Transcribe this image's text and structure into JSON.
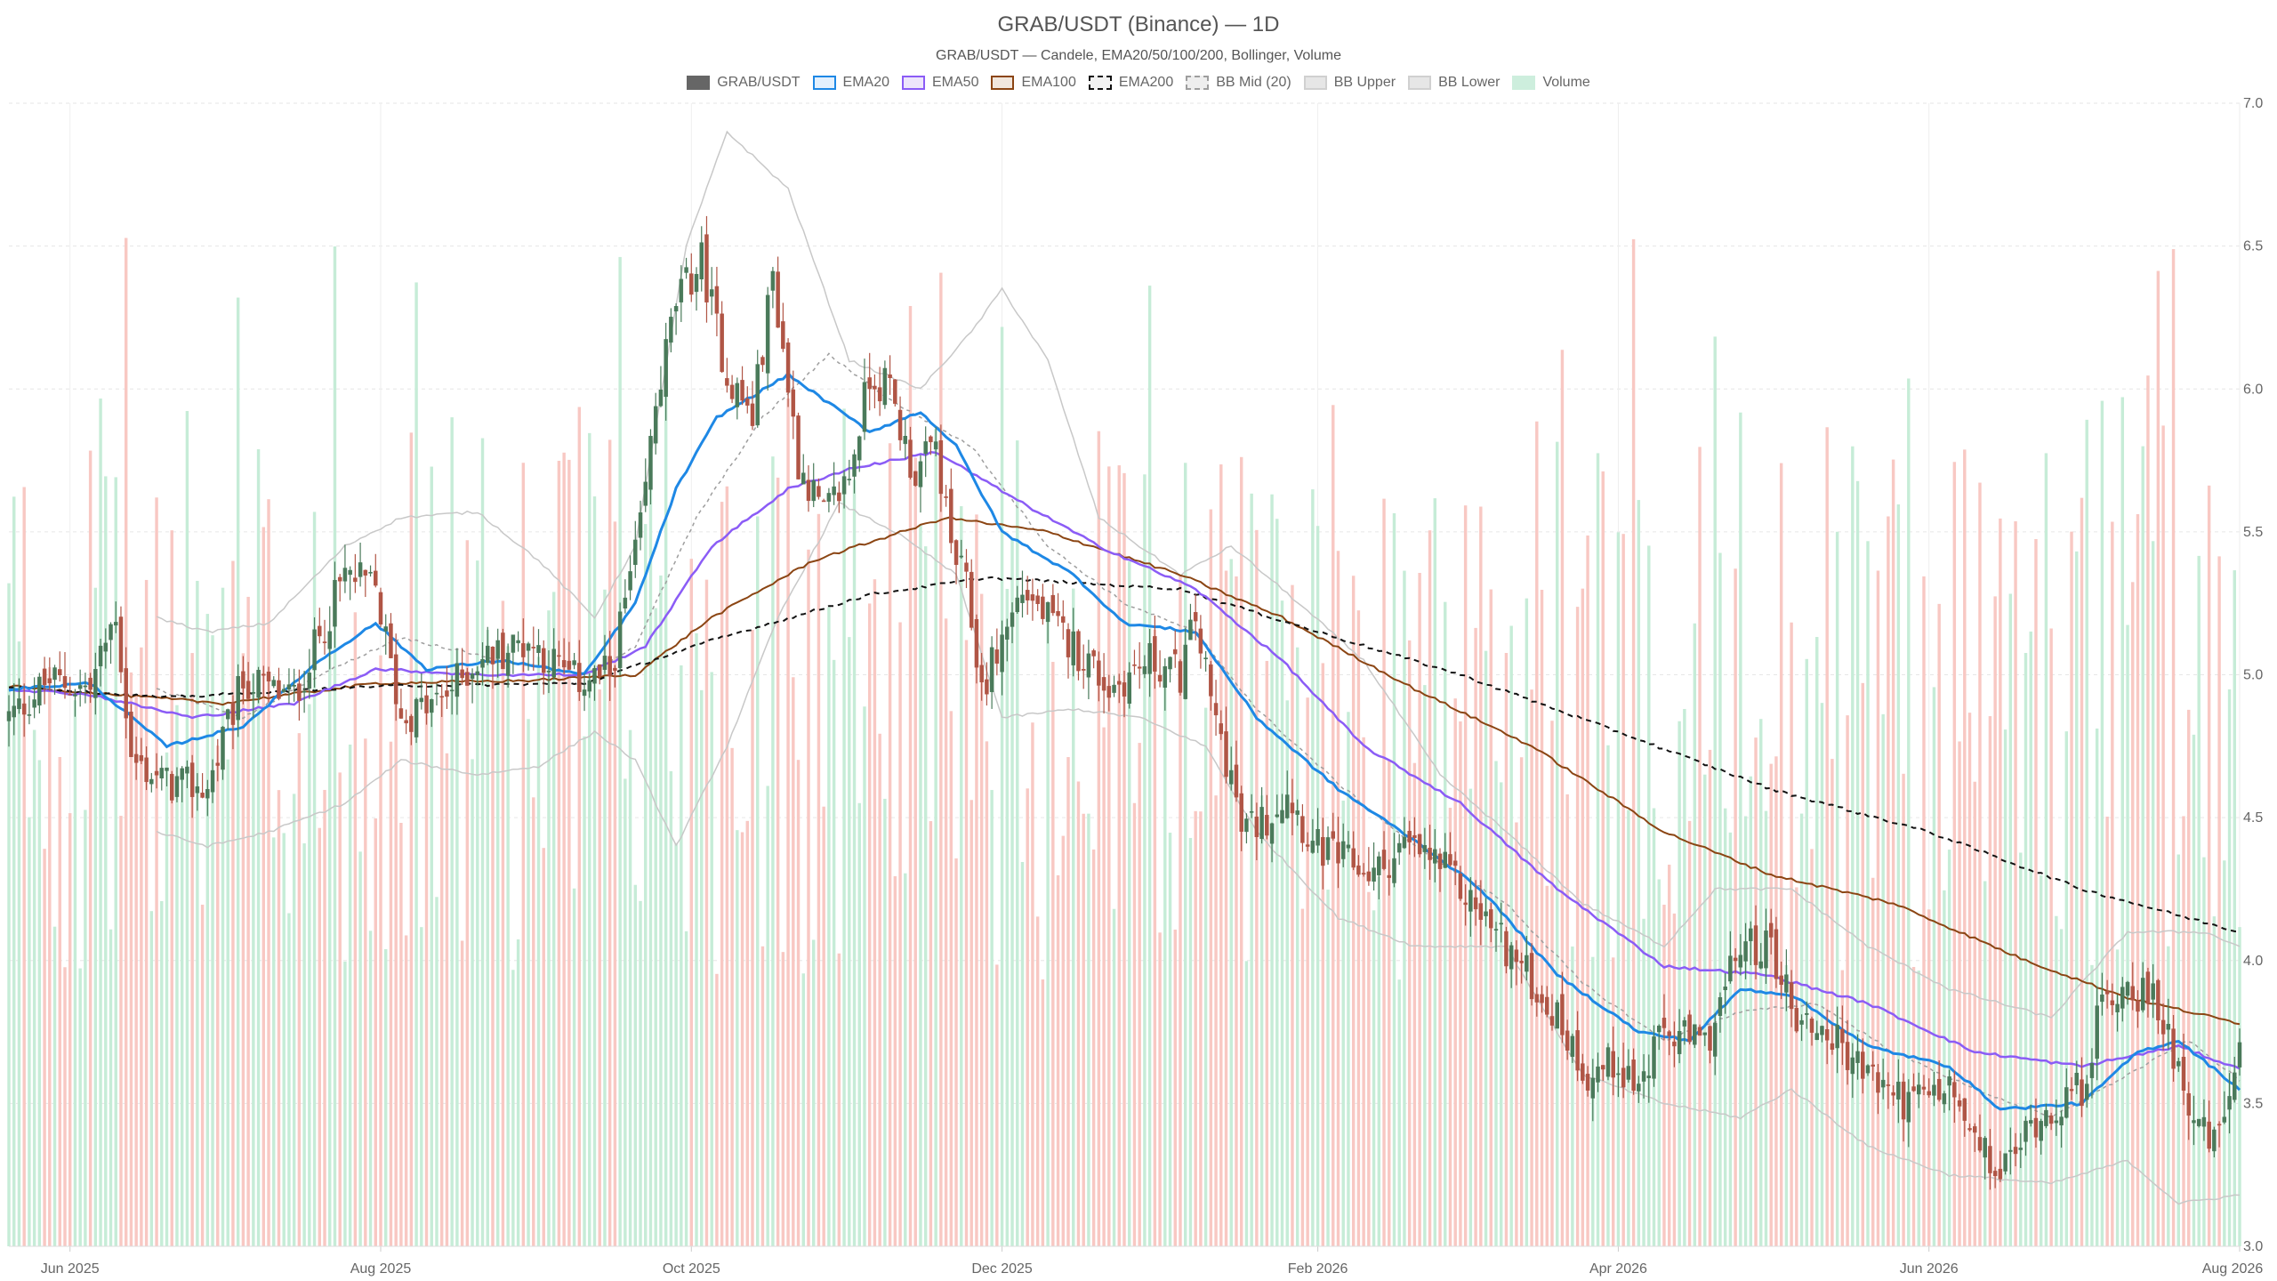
{
  "chart_data": {
    "type": "candlestick",
    "title": "GRAB/USDT (Binance) — 1D",
    "subtitle": "GRAB/USDT — Candele, EMA20/50/100/200, Bollinger, Volume",
    "legend_position": "top-center",
    "grid": true,
    "ylim": [
      3.0,
      7.0
    ],
    "xlim": [
      "2025-05-20",
      "2026-08-01"
    ],
    "y_ticks": [
      "3.0",
      "3.5",
      "4.0",
      "4.5",
      "5.0",
      "5.5",
      "6.0",
      "6.5",
      "7.0"
    ],
    "x_ticks": [
      {
        "label": "Jun 2025",
        "date": "2025-06-01"
      },
      {
        "label": "Aug 2025",
        "date": "2025-08-01"
      },
      {
        "label": "Oct 2025",
        "date": "2025-10-01"
      },
      {
        "label": "Dec 2025",
        "date": "2025-12-01"
      },
      {
        "label": "Feb 2026",
        "date": "2026-02-01"
      },
      {
        "label": "Apr 2026",
        "date": "2026-04-01"
      },
      {
        "label": "Jun 2026",
        "date": "2026-06-01"
      },
      {
        "label": "Aug 2026",
        "date": "2026-08-01"
      }
    ],
    "legend": [
      {
        "key": "price",
        "label": "GRAB/USDT",
        "fill": "#666666",
        "stroke": "#666666",
        "dash": false
      },
      {
        "key": "ema20",
        "label": "EMA20",
        "fill": "#e3f0fd",
        "stroke": "#1e88e5",
        "dash": false
      },
      {
        "key": "ema50",
        "label": "EMA50",
        "fill": "#ede5fb",
        "stroke": "#8b5cf6",
        "dash": false
      },
      {
        "key": "ema100",
        "label": "EMA100",
        "fill": "#f1e6dc",
        "stroke": "#8b4513",
        "dash": false
      },
      {
        "key": "ema200",
        "label": "EMA200",
        "fill": "#f2f2f2",
        "stroke": "#111111",
        "dash": true
      },
      {
        "key": "bbmid",
        "label": "BB Mid (20)",
        "fill": "#eeeeee",
        "stroke": "#9e9e9e",
        "dash": true
      },
      {
        "key": "bbup",
        "label": "BB Upper",
        "fill": "#e6e6e6",
        "stroke": "#d0d0d0",
        "dash": false
      },
      {
        "key": "bblow",
        "label": "BB Lower",
        "fill": "#e6e6e6",
        "stroke": "#d0d0d0",
        "dash": false
      },
      {
        "key": "volume",
        "label": "Volume",
        "fill": "#cdeedd",
        "stroke": "#cdeedd",
        "dash": false
      }
    ],
    "colors": {
      "up": "#4a7a5a",
      "down": "#b05545",
      "volume_up": "#c6ecd7",
      "volume_down": "#f8c8c3",
      "grid": "#e6e6e6"
    },
    "price_anchors": [
      [
        "2025-05-20",
        4.85
      ],
      [
        "2025-05-28",
        4.98
      ],
      [
        "2025-06-05",
        4.95
      ],
      [
        "2025-06-10",
        5.22
      ],
      [
        "2025-06-13",
        4.7
      ],
      [
        "2025-06-20",
        4.62
      ],
      [
        "2025-06-28",
        4.6
      ],
      [
        "2025-07-05",
        4.98
      ],
      [
        "2025-07-15",
        4.92
      ],
      [
        "2025-07-25",
        5.35
      ],
      [
        "2025-07-31",
        5.3
      ],
      [
        "2025-08-05",
        4.85
      ],
      [
        "2025-08-12",
        4.9
      ],
      [
        "2025-08-20",
        5.05
      ],
      [
        "2025-08-30",
        5.12
      ],
      [
        "2025-09-08",
        4.98
      ],
      [
        "2025-09-15",
        5.0
      ],
      [
        "2025-09-18",
        5.25
      ],
      [
        "2025-09-21",
        5.5
      ],
      [
        "2025-09-24",
        5.95
      ],
      [
        "2025-09-28",
        6.3
      ],
      [
        "2025-10-03",
        6.45
      ],
      [
        "2025-10-08",
        6.05
      ],
      [
        "2025-10-13",
        5.9
      ],
      [
        "2025-10-17",
        6.4
      ],
      [
        "2025-10-22",
        5.75
      ],
      [
        "2025-10-27",
        5.55
      ],
      [
        "2025-11-01",
        5.7
      ],
      [
        "2025-11-05",
        6.05
      ],
      [
        "2025-11-09",
        6.0
      ],
      [
        "2025-11-12",
        5.8
      ],
      [
        "2025-11-14",
        5.7
      ],
      [
        "2025-11-18",
        5.8
      ],
      [
        "2025-11-21",
        5.45
      ],
      [
        "2025-11-24",
        5.3
      ],
      [
        "2025-11-27",
        4.95
      ],
      [
        "2025-12-05",
        5.3
      ],
      [
        "2025-12-12",
        5.15
      ],
      [
        "2025-12-18",
        5.05
      ],
      [
        "2025-12-22",
        4.95
      ],
      [
        "2025-12-30",
        5.05
      ],
      [
        "2026-01-05",
        5.0
      ],
      [
        "2026-01-08",
        5.2
      ],
      [
        "2026-01-11",
        4.9
      ],
      [
        "2026-01-15",
        4.65
      ],
      [
        "2026-01-17",
        4.45
      ],
      [
        "2026-01-22",
        4.5
      ],
      [
        "2026-01-26",
        4.6
      ],
      [
        "2026-01-31",
        4.4
      ],
      [
        "2026-02-06",
        4.35
      ],
      [
        "2026-02-12",
        4.3
      ],
      [
        "2026-02-18",
        4.4
      ],
      [
        "2026-02-24",
        4.35
      ],
      [
        "2026-03-01",
        4.25
      ],
      [
        "2026-03-08",
        4.1
      ],
      [
        "2026-03-14",
        3.95
      ],
      [
        "2026-03-20",
        3.8
      ],
      [
        "2026-03-26",
        3.6
      ],
      [
        "2026-04-01",
        3.65
      ],
      [
        "2026-04-05",
        3.55
      ],
      [
        "2026-04-10",
        3.75
      ],
      [
        "2026-04-18",
        3.7
      ],
      [
        "2026-04-25",
        4.05
      ],
      [
        "2026-05-01",
        4.05
      ],
      [
        "2026-05-06",
        3.8
      ],
      [
        "2026-05-12",
        3.75
      ],
      [
        "2026-05-20",
        3.6
      ],
      [
        "2026-05-28",
        3.5
      ],
      [
        "2026-06-05",
        3.55
      ],
      [
        "2026-06-10",
        3.35
      ],
      [
        "2026-06-15",
        3.25
      ],
      [
        "2026-06-22",
        3.45
      ],
      [
        "2026-07-01",
        3.55
      ],
      [
        "2026-07-05",
        3.85
      ],
      [
        "2026-07-10",
        3.92
      ],
      [
        "2026-07-15",
        3.85
      ],
      [
        "2026-07-18",
        3.75
      ],
      [
        "2026-07-24",
        3.4
      ],
      [
        "2026-07-27",
        3.35
      ],
      [
        "2026-08-01",
        3.65
      ]
    ],
    "ema20_anchors": [
      [
        "2025-05-20",
        4.95
      ],
      [
        "2025-06-05",
        4.97
      ],
      [
        "2025-06-20",
        4.75
      ],
      [
        "2025-07-05",
        4.82
      ],
      [
        "2025-07-20",
        5.05
      ],
      [
        "2025-07-31",
        5.18
      ],
      [
        "2025-08-10",
        5.02
      ],
      [
        "2025-08-25",
        5.05
      ],
      [
        "2025-09-10",
        5.0
      ],
      [
        "2025-09-20",
        5.25
      ],
      [
        "2025-09-28",
        5.65
      ],
      [
        "2025-10-06",
        5.9
      ],
      [
        "2025-10-20",
        6.05
      ],
      [
        "2025-10-28",
        5.95
      ],
      [
        "2025-11-05",
        5.85
      ],
      [
        "2025-11-15",
        5.92
      ],
      [
        "2025-11-22",
        5.8
      ],
      [
        "2025-12-01",
        5.5
      ],
      [
        "2025-12-15",
        5.35
      ],
      [
        "2025-12-25",
        5.18
      ],
      [
        "2026-01-08",
        5.15
      ],
      [
        "2026-01-20",
        4.85
      ],
      [
        "2026-02-05",
        4.6
      ],
      [
        "2026-02-20",
        4.42
      ],
      [
        "2026-03-05",
        4.25
      ],
      [
        "2026-03-20",
        3.95
      ],
      [
        "2026-04-05",
        3.75
      ],
      [
        "2026-04-15",
        3.72
      ],
      [
        "2026-04-25",
        3.9
      ],
      [
        "2026-05-05",
        3.88
      ],
      [
        "2026-05-20",
        3.7
      ],
      [
        "2026-06-05",
        3.63
      ],
      [
        "2026-06-15",
        3.48
      ],
      [
        "2026-07-01",
        3.5
      ],
      [
        "2026-07-12",
        3.68
      ],
      [
        "2026-07-20",
        3.72
      ],
      [
        "2026-08-01",
        3.55
      ]
    ],
    "ema50_anchors": [
      [
        "2025-05-20",
        4.95
      ],
      [
        "2025-06-05",
        4.93
      ],
      [
        "2025-06-25",
        4.85
      ],
      [
        "2025-07-15",
        4.9
      ],
      [
        "2025-07-31",
        5.02
      ],
      [
        "2025-08-20",
        5.0
      ],
      [
        "2025-09-10",
        5.0
      ],
      [
        "2025-09-22",
        5.1
      ],
      [
        "2025-10-05",
        5.45
      ],
      [
        "2025-10-20",
        5.65
      ],
      [
        "2025-11-01",
        5.72
      ],
      [
        "2025-11-18",
        5.78
      ],
      [
        "2025-12-05",
        5.6
      ],
      [
        "2025-12-20",
        5.45
      ],
      [
        "2026-01-08",
        5.3
      ],
      [
        "2026-01-25",
        5.05
      ],
      [
        "2026-02-10",
        4.75
      ],
      [
        "2026-03-01",
        4.55
      ],
      [
        "2026-03-20",
        4.25
      ],
      [
        "2026-04-10",
        3.98
      ],
      [
        "2026-04-30",
        3.95
      ],
      [
        "2026-05-20",
        3.85
      ],
      [
        "2026-06-10",
        3.68
      ],
      [
        "2026-07-01",
        3.63
      ],
      [
        "2026-07-20",
        3.7
      ],
      [
        "2026-08-01",
        3.62
      ]
    ],
    "ema100_anchors": [
      [
        "2025-05-20",
        4.96
      ],
      [
        "2025-06-10",
        4.93
      ],
      [
        "2025-07-01",
        4.9
      ],
      [
        "2025-07-31",
        4.97
      ],
      [
        "2025-08-30",
        4.98
      ],
      [
        "2025-09-20",
        5.0
      ],
      [
        "2025-10-05",
        5.2
      ],
      [
        "2025-10-25",
        5.4
      ],
      [
        "2025-11-20",
        5.55
      ],
      [
        "2025-12-10",
        5.5
      ],
      [
        "2026-01-05",
        5.35
      ],
      [
        "2026-01-25",
        5.2
      ],
      [
        "2026-02-20",
        4.95
      ],
      [
        "2026-03-15",
        4.75
      ],
      [
        "2026-04-10",
        4.45
      ],
      [
        "2026-05-01",
        4.3
      ],
      [
        "2026-05-25",
        4.2
      ],
      [
        "2026-06-20",
        4.0
      ],
      [
        "2026-07-10",
        3.87
      ],
      [
        "2026-08-01",
        3.78
      ]
    ],
    "ema200_anchors": [
      [
        "2025-05-20",
        4.96
      ],
      [
        "2025-06-20",
        4.92
      ],
      [
        "2025-07-31",
        4.96
      ],
      [
        "2025-09-10",
        4.97
      ],
      [
        "2025-10-05",
        5.12
      ],
      [
        "2025-11-05",
        5.28
      ],
      [
        "2025-11-28",
        5.34
      ],
      [
        "2026-01-05",
        5.3
      ],
      [
        "2026-02-01",
        5.15
      ],
      [
        "2026-03-01",
        5.0
      ],
      [
        "2026-04-01",
        4.8
      ],
      [
        "2026-05-01",
        4.6
      ],
      [
        "2026-06-01",
        4.45
      ],
      [
        "2026-07-01",
        4.25
      ],
      [
        "2026-08-01",
        4.1
      ]
    ],
    "bbmid_anchors": [
      [
        "2025-06-18",
        4.95
      ],
      [
        "2025-07-05",
        4.85
      ],
      [
        "2025-07-20",
        5.0
      ],
      [
        "2025-08-05",
        5.13
      ],
      [
        "2025-08-25",
        5.05
      ],
      [
        "2025-09-10",
        5.0
      ],
      [
        "2025-09-20",
        5.1
      ],
      [
        "2025-10-02",
        5.55
      ],
      [
        "2025-10-15",
        5.9
      ],
      [
        "2025-10-28",
        6.12
      ],
      [
        "2025-11-10",
        5.95
      ],
      [
        "2025-11-25",
        5.8
      ],
      [
        "2025-12-10",
        5.45
      ],
      [
        "2025-12-25",
        5.25
      ],
      [
        "2026-01-08",
        5.15
      ],
      [
        "2026-01-20",
        4.88
      ],
      [
        "2026-02-05",
        4.62
      ],
      [
        "2026-02-20",
        4.4
      ],
      [
        "2026-03-10",
        4.2
      ],
      [
        "2026-03-25",
        3.92
      ],
      [
        "2026-04-10",
        3.72
      ],
      [
        "2026-04-25",
        3.82
      ],
      [
        "2026-05-10",
        3.85
      ],
      [
        "2026-05-25",
        3.68
      ],
      [
        "2026-06-10",
        3.55
      ],
      [
        "2026-06-25",
        3.45
      ],
      [
        "2026-07-10",
        3.6
      ],
      [
        "2026-07-22",
        3.72
      ],
      [
        "2026-08-01",
        3.58
      ]
    ],
    "bbup_anchors": [
      [
        "2025-06-18",
        5.2
      ],
      [
        "2025-06-28",
        5.15
      ],
      [
        "2025-07-10",
        5.18
      ],
      [
        "2025-07-25",
        5.45
      ],
      [
        "2025-08-05",
        5.55
      ],
      [
        "2025-08-20",
        5.57
      ],
      [
        "2025-09-01",
        5.4
      ],
      [
        "2025-09-12",
        5.2
      ],
      [
        "2025-09-20",
        5.45
      ],
      [
        "2025-09-30",
        6.5
      ],
      [
        "2025-10-08",
        6.9
      ],
      [
        "2025-10-20",
        6.7
      ],
      [
        "2025-11-01",
        6.1
      ],
      [
        "2025-11-15",
        6.0
      ],
      [
        "2025-11-25",
        6.2
      ],
      [
        "2025-12-01",
        6.35
      ],
      [
        "2025-12-10",
        6.1
      ],
      [
        "2025-12-20",
        5.55
      ],
      [
        "2026-01-05",
        5.35
      ],
      [
        "2026-01-15",
        5.45
      ],
      [
        "2026-01-25",
        5.3
      ],
      [
        "2026-02-10",
        5.05
      ],
      [
        "2026-02-25",
        4.65
      ],
      [
        "2026-03-10",
        4.45
      ],
      [
        "2026-03-25",
        4.2
      ],
      [
        "2026-04-10",
        4.05
      ],
      [
        "2026-04-20",
        4.25
      ],
      [
        "2026-05-05",
        4.25
      ],
      [
        "2026-05-20",
        4.05
      ],
      [
        "2026-06-05",
        3.9
      ],
      [
        "2026-06-25",
        3.8
      ],
      [
        "2026-07-10",
        4.1
      ],
      [
        "2026-07-25",
        4.1
      ],
      [
        "2026-08-01",
        4.05
      ]
    ],
    "bblow_anchors": [
      [
        "2025-06-18",
        4.45
      ],
      [
        "2025-06-28",
        4.4
      ],
      [
        "2025-07-10",
        4.45
      ],
      [
        "2025-07-25",
        4.55
      ],
      [
        "2025-08-05",
        4.7
      ],
      [
        "2025-08-20",
        4.65
      ],
      [
        "2025-09-01",
        4.68
      ],
      [
        "2025-09-12",
        4.8
      ],
      [
        "2025-09-20",
        4.7
      ],
      [
        "2025-09-28",
        4.4
      ],
      [
        "2025-10-08",
        4.75
      ],
      [
        "2025-10-18",
        5.2
      ],
      [
        "2025-10-30",
        5.6
      ],
      [
        "2025-11-10",
        5.5
      ],
      [
        "2025-11-22",
        5.35
      ],
      [
        "2025-12-01",
        4.85
      ],
      [
        "2025-12-15",
        4.88
      ],
      [
        "2025-12-28",
        4.85
      ],
      [
        "2026-01-10",
        4.75
      ],
      [
        "2026-01-20",
        4.45
      ],
      [
        "2026-02-05",
        4.15
      ],
      [
        "2026-02-20",
        4.05
      ],
      [
        "2026-03-10",
        4.05
      ],
      [
        "2026-03-25",
        3.6
      ],
      [
        "2026-04-10",
        3.5
      ],
      [
        "2026-04-25",
        3.45
      ],
      [
        "2026-05-05",
        3.55
      ],
      [
        "2026-05-20",
        3.35
      ],
      [
        "2026-06-05",
        3.25
      ],
      [
        "2026-06-25",
        3.22
      ],
      [
        "2026-07-10",
        3.3
      ],
      [
        "2026-07-20",
        3.15
      ],
      [
        "2026-08-01",
        3.18
      ]
    ],
    "volume_ylim_fraction": 0.93
  }
}
